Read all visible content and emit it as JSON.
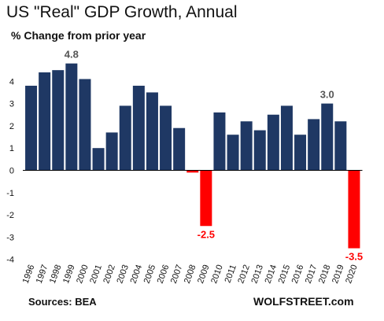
{
  "title": "US \"Real\" GDP Growth, Annual",
  "subtitle": "% Change from prior year",
  "source": "Sources: BEA",
  "brand": "WOLFSTREET.com",
  "colors": {
    "positive": "#1f3864",
    "negative": "#ff0000",
    "axis": "#000000"
  },
  "chart_data": {
    "type": "bar",
    "title": "US \"Real\" GDP Growth, Annual",
    "subtitle": "% Change from prior year",
    "xlabel": "",
    "ylabel": "",
    "ylim": [
      -4,
      5
    ],
    "yticks": [
      -4,
      -3,
      -2,
      -1,
      0,
      1,
      2,
      3,
      4
    ],
    "grid": false,
    "categories": [
      "1996",
      "1997",
      "1998",
      "1999",
      "2000",
      "2001",
      "2002",
      "2003",
      "2004",
      "2005",
      "2006",
      "2007",
      "2008",
      "2009",
      "2010",
      "2011",
      "2012",
      "2013",
      "2014",
      "2015",
      "2016",
      "2017",
      "2018",
      "2019",
      "2020"
    ],
    "values": [
      3.8,
      4.4,
      4.5,
      4.8,
      4.1,
      1.0,
      1.7,
      2.9,
      3.8,
      3.5,
      2.9,
      1.9,
      -0.1,
      -2.5,
      2.6,
      1.6,
      2.2,
      1.8,
      2.5,
      2.9,
      1.6,
      2.3,
      3.0,
      2.2,
      -3.5
    ],
    "annotations": [
      {
        "category": "1999",
        "text": "4.8"
      },
      {
        "category": "2009",
        "text": "-2.5"
      },
      {
        "category": "2018",
        "text": "3.0"
      },
      {
        "category": "2020",
        "text": "-3.5"
      }
    ]
  }
}
